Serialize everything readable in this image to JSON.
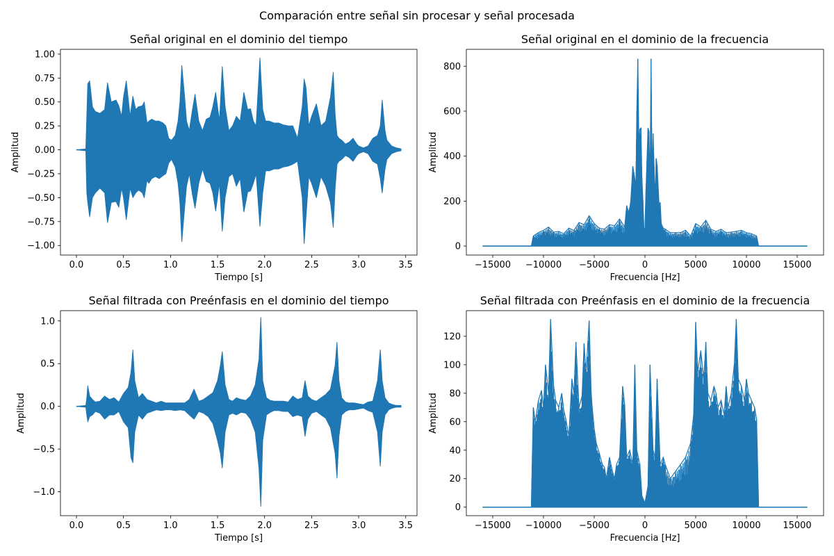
{
  "figure": {
    "suptitle": "Comparación entre señal sin procesar y señal procesada"
  },
  "chart_data": [
    {
      "type": "line",
      "title": "Señal original en el dominio del tiempo",
      "xlabel": "Tiempo [s]",
      "ylabel": "Amplitud",
      "xlim": [
        -0.17,
        3.62
      ],
      "ylim": [
        -1.1,
        1.05
      ],
      "xticks": [
        0.0,
        0.5,
        1.0,
        1.5,
        2.0,
        2.5,
        3.0,
        3.5
      ],
      "xtick_labels": [
        "0.0",
        "0.5",
        "1.0",
        "1.5",
        "2.0",
        "2.5",
        "3.0",
        "3.5"
      ],
      "yticks": [
        -1.0,
        -0.75,
        -0.5,
        -0.25,
        0.0,
        0.25,
        0.5,
        0.75,
        1.0
      ],
      "ytick_labels": [
        "−1.00",
        "−0.75",
        "−0.50",
        "−0.25",
        "0.00",
        "0.25",
        "0.50",
        "0.75",
        "1.00"
      ],
      "color": "#1f77b4",
      "x": [
        0.0,
        0.1,
        0.11,
        0.12,
        0.14,
        0.17,
        0.2,
        0.25,
        0.3,
        0.33,
        0.37,
        0.42,
        0.45,
        0.48,
        0.5,
        0.53,
        0.57,
        0.6,
        0.63,
        0.66,
        0.7,
        0.72,
        0.75,
        0.77,
        0.8,
        0.84,
        0.88,
        0.92,
        0.95,
        0.98,
        1.01,
        1.05,
        1.08,
        1.1,
        1.12,
        1.15,
        1.17,
        1.2,
        1.23,
        1.26,
        1.3,
        1.34,
        1.38,
        1.42,
        1.45,
        1.48,
        1.52,
        1.55,
        1.58,
        1.62,
        1.66,
        1.7,
        1.74,
        1.78,
        1.82,
        1.85,
        1.88,
        1.91,
        1.95,
        1.98,
        2.01,
        2.05,
        2.1,
        2.15,
        2.2,
        2.25,
        2.3,
        2.35,
        2.4,
        2.42,
        2.44,
        2.47,
        2.5,
        2.55,
        2.6,
        2.65,
        2.7,
        2.73,
        2.75,
        2.77,
        2.79,
        2.82,
        2.86,
        2.9,
        2.94,
        2.98,
        3.0,
        3.05,
        3.1,
        3.15,
        3.2,
        3.23,
        3.25,
        3.28,
        3.3,
        3.35,
        3.4,
        3.45
      ],
      "y_upper": [
        0.0,
        0.01,
        0.35,
        0.69,
        0.72,
        0.45,
        0.4,
        0.38,
        0.42,
        0.7,
        0.5,
        0.52,
        0.46,
        0.35,
        0.55,
        0.72,
        0.35,
        0.56,
        0.42,
        0.45,
        0.46,
        0.5,
        0.28,
        0.3,
        0.32,
        0.3,
        0.3,
        0.28,
        0.25,
        0.12,
        0.1,
        0.15,
        0.3,
        0.5,
        0.88,
        0.55,
        0.3,
        0.2,
        0.4,
        0.58,
        0.3,
        0.2,
        0.32,
        0.34,
        0.45,
        0.6,
        0.3,
        0.87,
        0.45,
        0.2,
        0.25,
        0.35,
        0.3,
        0.6,
        0.42,
        0.43,
        0.3,
        0.25,
        0.96,
        0.42,
        0.3,
        0.3,
        0.28,
        0.28,
        0.26,
        0.25,
        0.25,
        0.12,
        0.45,
        0.74,
        0.65,
        0.25,
        0.35,
        0.48,
        0.25,
        0.3,
        0.55,
        0.81,
        0.37,
        0.15,
        0.12,
        0.1,
        0.06,
        0.08,
        0.12,
        0.06,
        0.04,
        0.02,
        0.04,
        0.12,
        0.15,
        0.25,
        0.52,
        0.2,
        0.1,
        0.04,
        0.02,
        0.01
      ],
      "y_lower": [
        0.0,
        -0.01,
        -0.45,
        -0.55,
        -0.7,
        -0.5,
        -0.45,
        -0.4,
        -0.45,
        -0.76,
        -0.55,
        -0.54,
        -0.6,
        -0.4,
        -0.5,
        -0.73,
        -0.4,
        -0.5,
        -0.45,
        -0.42,
        -0.45,
        -0.5,
        -0.32,
        -0.35,
        -0.3,
        -0.28,
        -0.3,
        -0.27,
        -0.25,
        -0.14,
        -0.1,
        -0.18,
        -0.35,
        -0.55,
        -0.96,
        -0.6,
        -0.38,
        -0.25,
        -0.45,
        -0.61,
        -0.35,
        -0.2,
        -0.33,
        -0.35,
        -0.45,
        -0.64,
        -0.35,
        -0.85,
        -0.5,
        -0.28,
        -0.25,
        -0.38,
        -0.3,
        -0.65,
        -0.44,
        -0.43,
        -0.35,
        -0.25,
        -0.8,
        -0.45,
        -0.22,
        -0.22,
        -0.2,
        -0.2,
        -0.18,
        -0.17,
        -0.15,
        -0.12,
        -0.5,
        -0.98,
        -0.7,
        -0.28,
        -0.35,
        -0.5,
        -0.28,
        -0.38,
        -0.55,
        -0.81,
        -0.4,
        -0.15,
        -0.12,
        -0.1,
        -0.06,
        -0.08,
        -0.12,
        -0.06,
        -0.04,
        -0.02,
        -0.04,
        -0.12,
        -0.15,
        -0.3,
        -0.45,
        -0.2,
        -0.1,
        -0.04,
        -0.02,
        -0.01
      ]
    },
    {
      "type": "line",
      "title": "Señal original en el dominio de la frecuencia",
      "xlabel": "Frecuencia [Hz]",
      "ylabel": "Amplitud",
      "xlim": [
        -17600,
        17600
      ],
      "ylim": [
        -40,
        875
      ],
      "xticks": [
        -15000,
        -10000,
        -5000,
        0,
        5000,
        10000,
        15000
      ],
      "xtick_labels": [
        "−15000",
        "−10000",
        "−5000",
        "0",
        "5000",
        "10000",
        "15000"
      ],
      "yticks": [
        0,
        200,
        400,
        600,
        800
      ],
      "ytick_labels": [
        "0",
        "200",
        "400",
        "600",
        "800"
      ],
      "color": "#1f77b4",
      "x": [
        -16000,
        -11200,
        -11000,
        -10500,
        -10000,
        -9500,
        -9000,
        -8500,
        -8000,
        -7500,
        -7000,
        -6500,
        -6000,
        -5500,
        -5000,
        -4500,
        -4000,
        -3500,
        -3000,
        -2500,
        -2000,
        -1800,
        -1600,
        -1500,
        -1400,
        -1200,
        -1100,
        -1000,
        -900,
        -800,
        -700,
        -600,
        -500,
        -400,
        -300,
        -200,
        -100,
        0,
        100,
        200,
        300,
        400,
        500,
        600,
        700,
        800,
        900,
        1000,
        1100,
        1200,
        1400,
        1500,
        1600,
        1800,
        2000,
        2500,
        3000,
        3500,
        4000,
        4500,
        5000,
        5500,
        6000,
        6500,
        7000,
        7500,
        8000,
        8500,
        9000,
        9500,
        10000,
        10500,
        11000,
        11200,
        16000
      ],
      "y": [
        0,
        0,
        45,
        60,
        70,
        85,
        62,
        65,
        55,
        80,
        70,
        105,
        95,
        135,
        100,
        80,
        75,
        95,
        90,
        120,
        85,
        180,
        150,
        170,
        200,
        355,
        330,
        300,
        250,
        600,
        833,
        450,
        520,
        525,
        300,
        200,
        70,
        80,
        250,
        380,
        525,
        510,
        250,
        833,
        300,
        500,
        355,
        200,
        390,
        360,
        175,
        195,
        100,
        80,
        75,
        60,
        60,
        60,
        70,
        45,
        100,
        85,
        115,
        75,
        65,
        75,
        60,
        62,
        65,
        70,
        60,
        55,
        45,
        0,
        0
      ]
    },
    {
      "type": "line",
      "title": "Señal filtrada con Preénfasis en el dominio del tiempo",
      "xlabel": "Tiempo [s]",
      "ylabel": "Amplitud",
      "xlim": [
        -0.17,
        3.62
      ],
      "ylim": [
        -1.28,
        1.12
      ],
      "xticks": [
        0.0,
        0.5,
        1.0,
        1.5,
        2.0,
        2.5,
        3.0,
        3.5
      ],
      "xtick_labels": [
        "0.0",
        "0.5",
        "1.0",
        "1.5",
        "2.0",
        "2.5",
        "3.0",
        "3.5"
      ],
      "yticks": [
        -1.0,
        -0.5,
        0.0,
        0.5,
        1.0
      ],
      "ytick_labels": [
        "−1.0",
        "−0.5",
        "0.0",
        "0.5",
        "1.0"
      ],
      "color": "#1f77b4",
      "x": [
        0.0,
        0.1,
        0.11,
        0.12,
        0.14,
        0.17,
        0.2,
        0.25,
        0.3,
        0.35,
        0.4,
        0.45,
        0.5,
        0.55,
        0.58,
        0.6,
        0.62,
        0.66,
        0.7,
        0.75,
        0.8,
        0.85,
        0.9,
        0.95,
        1.0,
        1.05,
        1.1,
        1.15,
        1.2,
        1.25,
        1.3,
        1.35,
        1.4,
        1.45,
        1.5,
        1.53,
        1.55,
        1.58,
        1.62,
        1.66,
        1.7,
        1.75,
        1.8,
        1.85,
        1.9,
        1.94,
        1.96,
        1.98,
        2.02,
        2.06,
        2.1,
        2.15,
        2.2,
        2.25,
        2.3,
        2.35,
        2.4,
        2.43,
        2.46,
        2.5,
        2.55,
        2.6,
        2.65,
        2.7,
        2.75,
        2.77,
        2.79,
        2.82,
        2.86,
        2.9,
        2.95,
        3.0,
        3.05,
        3.1,
        3.15,
        3.2,
        3.23,
        3.25,
        3.28,
        3.32,
        3.36,
        3.4,
        3.45
      ],
      "y_upper": [
        0.0,
        0.01,
        0.1,
        0.24,
        0.12,
        0.08,
        0.05,
        0.06,
        0.12,
        0.08,
        0.1,
        0.05,
        0.15,
        0.22,
        0.4,
        0.66,
        0.3,
        0.1,
        0.15,
        0.08,
        0.06,
        0.04,
        0.06,
        0.04,
        0.04,
        0.04,
        0.04,
        0.04,
        0.08,
        0.2,
        0.06,
        0.08,
        0.12,
        0.16,
        0.3,
        0.48,
        0.64,
        0.25,
        0.08,
        0.06,
        0.1,
        0.08,
        0.07,
        0.12,
        0.25,
        0.55,
        1.04,
        0.3,
        0.1,
        0.07,
        0.06,
        0.06,
        0.06,
        0.05,
        0.12,
        0.08,
        0.1,
        0.3,
        0.12,
        0.08,
        0.06,
        0.1,
        0.14,
        0.2,
        0.48,
        0.75,
        0.3,
        0.1,
        0.05,
        0.04,
        0.04,
        0.03,
        0.02,
        0.05,
        0.06,
        0.3,
        0.66,
        0.3,
        0.1,
        0.04,
        0.02,
        0.01,
        0.01
      ],
      "y_lower": [
        0.0,
        -0.01,
        -0.1,
        -0.18,
        -0.12,
        -0.1,
        -0.06,
        -0.08,
        -0.15,
        -0.1,
        -0.1,
        -0.06,
        -0.18,
        -0.25,
        -0.6,
        -0.66,
        -0.3,
        -0.1,
        -0.15,
        -0.08,
        -0.06,
        -0.04,
        -0.05,
        -0.04,
        -0.04,
        -0.05,
        -0.04,
        -0.05,
        -0.1,
        -0.15,
        -0.06,
        -0.08,
        -0.12,
        -0.2,
        -0.4,
        -0.55,
        -0.72,
        -0.3,
        -0.1,
        -0.08,
        -0.1,
        -0.07,
        -0.08,
        -0.15,
        -0.3,
        -0.72,
        -1.17,
        -0.4,
        -0.1,
        -0.07,
        -0.05,
        -0.05,
        -0.06,
        -0.06,
        -0.12,
        -0.1,
        -0.12,
        -0.35,
        -0.15,
        -0.08,
        -0.06,
        -0.1,
        -0.14,
        -0.25,
        -0.55,
        -0.84,
        -0.35,
        -0.1,
        -0.06,
        -0.04,
        -0.04,
        -0.03,
        -0.02,
        -0.05,
        -0.07,
        -0.3,
        -0.7,
        -0.3,
        -0.1,
        -0.04,
        -0.02,
        -0.01,
        -0.01
      ]
    },
    {
      "type": "line",
      "title": "Señal filtrada con Preénfasis en el dominio de la frecuencia",
      "xlabel": "Frecuencia [Hz]",
      "ylabel": "Amplitud",
      "xlim": [
        -17600,
        17600
      ],
      "ylim": [
        -6,
        138
      ],
      "xticks": [
        -15000,
        -10000,
        -5000,
        0,
        5000,
        10000,
        15000
      ],
      "xtick_labels": [
        "−15000",
        "−10000",
        "−5000",
        "0",
        "5000",
        "10000",
        "15000"
      ],
      "yticks": [
        0,
        20,
        40,
        60,
        80,
        100,
        120
      ],
      "ytick_labels": [
        "0",
        "20",
        "40",
        "60",
        "80",
        "100",
        "120"
      ],
      "color": "#1f77b4",
      "x": [
        -16000,
        -11200,
        -11000,
        -10800,
        -10500,
        -10200,
        -10000,
        -9800,
        -9500,
        -9300,
        -9000,
        -8800,
        -8500,
        -8200,
        -8000,
        -7800,
        -7500,
        -7200,
        -7000,
        -6800,
        -6500,
        -6200,
        -6000,
        -5800,
        -5500,
        -5300,
        -5200,
        -5000,
        -4800,
        -4500,
        -4200,
        -4000,
        -3800,
        -3500,
        -3200,
        -3000,
        -2800,
        -2500,
        -2200,
        -2000,
        -1800,
        -1500,
        -1200,
        -1000,
        -800,
        -500,
        -300,
        0,
        300,
        500,
        800,
        1000,
        1200,
        1500,
        1800,
        2000,
        2500,
        3000,
        3500,
        4000,
        4500,
        4800,
        5000,
        5200,
        5500,
        5800,
        6000,
        6200,
        6500,
        6800,
        7000,
        7200,
        7500,
        7800,
        8000,
        8200,
        8500,
        8800,
        9000,
        9200,
        9500,
        9800,
        10000,
        10200,
        10500,
        10800,
        11000,
        11200,
        16000
      ],
      "y": [
        0,
        0,
        70,
        60,
        75,
        82,
        70,
        100,
        80,
        132,
        85,
        75,
        70,
        80,
        68,
        62,
        50,
        90,
        80,
        116,
        70,
        78,
        115,
        95,
        131,
        80,
        70,
        55,
        45,
        38,
        30,
        28,
        20,
        35,
        25,
        20,
        30,
        35,
        85,
        72,
        35,
        40,
        30,
        100,
        40,
        30,
        8,
        3,
        15,
        100,
        40,
        35,
        90,
        30,
        35,
        30,
        20,
        25,
        30,
        35,
        45,
        65,
        130,
        95,
        110,
        90,
        116,
        80,
        75,
        85,
        80,
        70,
        75,
        65,
        85,
        70,
        80,
        100,
        132,
        90,
        85,
        75,
        90,
        80,
        75,
        70,
        62,
        0,
        0
      ]
    }
  ]
}
